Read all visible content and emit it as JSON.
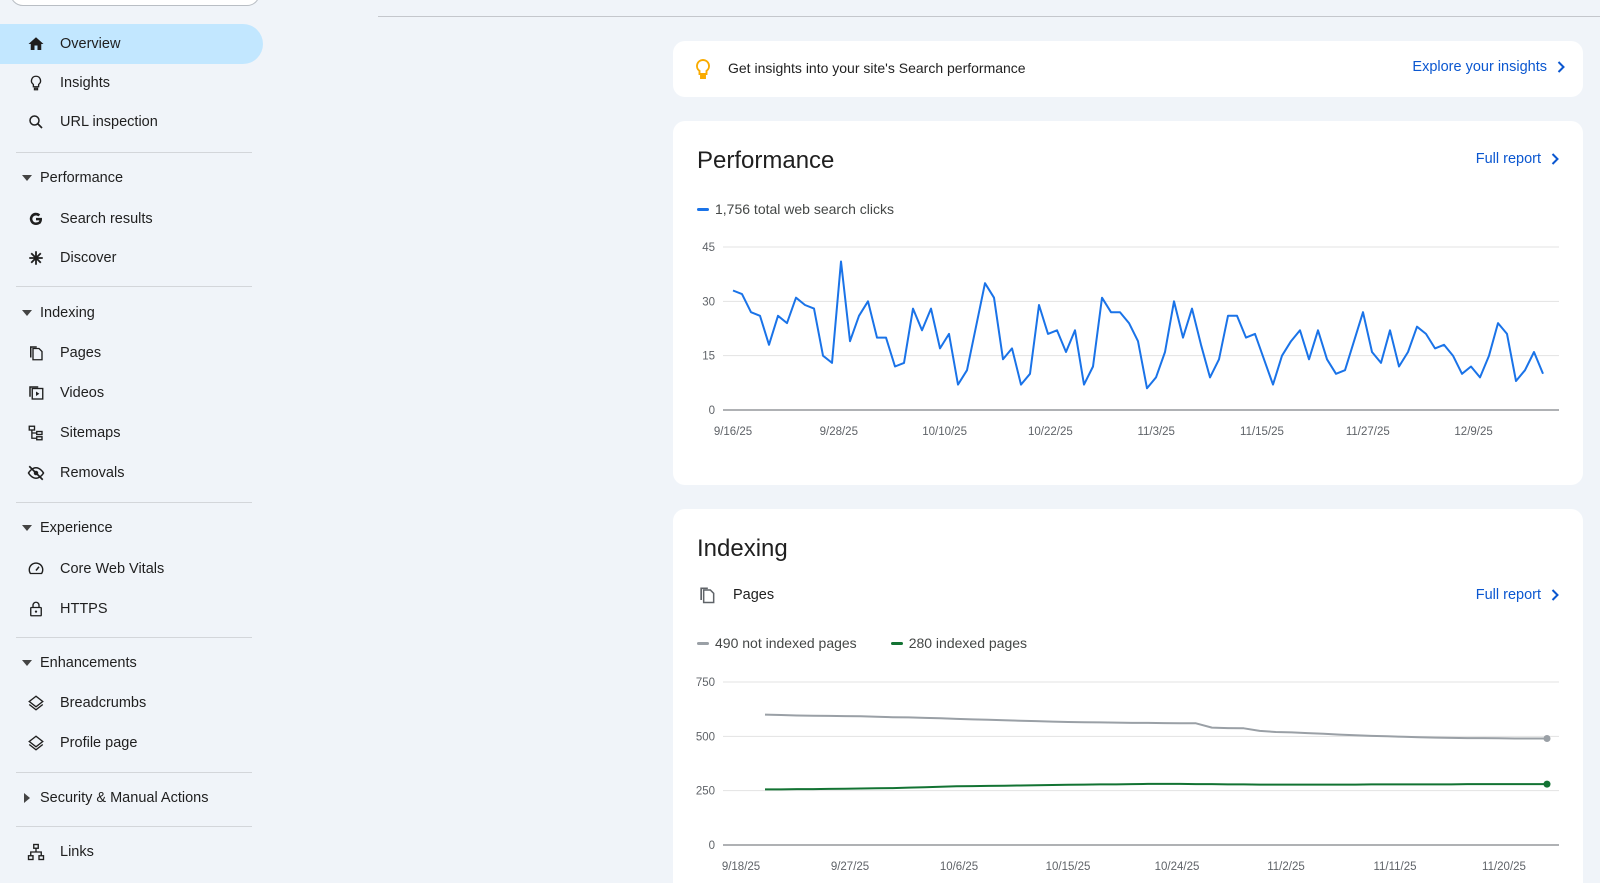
{
  "sidebar": {
    "items": {
      "overview": "Overview",
      "insights": "Insights",
      "url_inspection": "URL inspection",
      "search_results": "Search results",
      "discover": "Discover",
      "pages": "Pages",
      "videos": "Videos",
      "sitemaps": "Sitemaps",
      "removals": "Removals",
      "core_web_vitals": "Core Web Vitals",
      "https": "HTTPS",
      "breadcrumbs": "Breadcrumbs",
      "profile_page": "Profile page",
      "links": "Links"
    },
    "sections": {
      "performance": "Performance",
      "indexing": "Indexing",
      "experience": "Experience",
      "enhancements": "Enhancements",
      "security": "Security & Manual Actions"
    },
    "active_item": "Overview"
  },
  "insights_banner": {
    "message": "Get insights into your site's Search performance",
    "link": "Explore your insights"
  },
  "performance": {
    "title": "Performance",
    "link": "Full report",
    "legend": "1,756 total web search clicks"
  },
  "indexing": {
    "title": "Indexing",
    "pages_label": "Pages",
    "link": "Full report",
    "legend_not_indexed": "490 not indexed pages",
    "legend_indexed": "280 indexed pages"
  },
  "colors": {
    "accent": "#0b57d0",
    "active_nav": "#c2e7ff",
    "clicks_line": "#1a73e8",
    "not_indexed": "#9aa0a6",
    "indexed": "#137333",
    "bulb": "#f9ab00"
  },
  "chart_data": [
    {
      "type": "line",
      "title": "",
      "ylim": [
        0,
        45
      ],
      "y_ticks": [
        0,
        15,
        30,
        45
      ],
      "x_tick_labels": [
        "9/16/25",
        "9/28/25",
        "10/10/25",
        "10/22/25",
        "11/3/25",
        "11/15/25",
        "11/27/25",
        "12/9/25"
      ],
      "x_start": "9/16/25",
      "series": [
        {
          "name": "1,756 total web search clicks",
          "color": "#1a73e8",
          "values": [
            33,
            32,
            27,
            26,
            18,
            26,
            24,
            31,
            29,
            28,
            15,
            13,
            41,
            19,
            26,
            30,
            20,
            20,
            12,
            13,
            28,
            22,
            28,
            17,
            21,
            7,
            11,
            23,
            35,
            31,
            14,
            17,
            7,
            10,
            29,
            21,
            22,
            16,
            22,
            7,
            12,
            31,
            27,
            27,
            24,
            19,
            6,
            9,
            16,
            30,
            20,
            28,
            18,
            9,
            14,
            26,
            26,
            20,
            21,
            14,
            7,
            15,
            19,
            22,
            14,
            22,
            14,
            10,
            11,
            19,
            27,
            16,
            13,
            22,
            12,
            16,
            23,
            21,
            17,
            18,
            15,
            10,
            12,
            9,
            15,
            24,
            21,
            8,
            11,
            16,
            10
          ]
        }
      ]
    },
    {
      "type": "line",
      "title": "",
      "ylim": [
        0,
        750
      ],
      "y_ticks": [
        0,
        250,
        500,
        750
      ],
      "x_tick_labels": [
        "9/18/25",
        "9/27/25",
        "10/6/25",
        "10/15/25",
        "10/24/25",
        "11/2/25",
        "11/11/25",
        "11/20/25"
      ],
      "series": [
        {
          "name": "490 not indexed pages",
          "color": "#9aa0a6",
          "values": [
            600,
            598,
            596,
            595,
            594,
            593,
            592,
            590,
            588,
            587,
            585,
            583,
            580,
            578,
            576,
            574,
            572,
            570,
            568,
            566,
            565,
            564,
            563,
            562,
            562,
            561,
            560,
            560,
            540,
            538,
            537,
            525,
            520,
            518,
            515,
            512,
            508,
            505,
            502,
            500,
            498,
            496,
            494,
            493,
            492,
            492,
            491,
            490,
            490,
            490
          ]
        },
        {
          "name": "280 indexed pages",
          "color": "#137333",
          "values": [
            256,
            256,
            257,
            257,
            258,
            259,
            260,
            261,
            262,
            264,
            266,
            268,
            270,
            271,
            272,
            273,
            274,
            275,
            276,
            277,
            278,
            279,
            279,
            280,
            281,
            281,
            281,
            280,
            280,
            279,
            279,
            278,
            278,
            278,
            278,
            278,
            278,
            278,
            279,
            279,
            279,
            279,
            279,
            279,
            280,
            280,
            280,
            280,
            280,
            280
          ]
        }
      ]
    }
  ]
}
